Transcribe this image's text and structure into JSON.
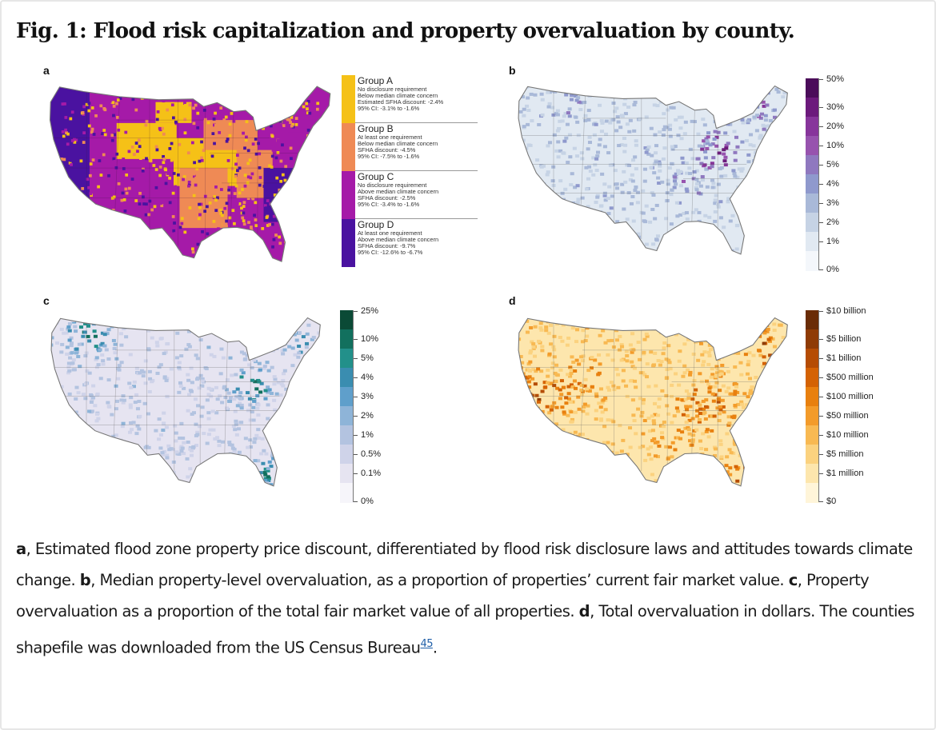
{
  "figure": {
    "title": "Fig. 1: Flood risk capitalization and property overvaluation by county."
  },
  "panels": [
    {
      "letter": "a",
      "legend": [
        {
          "name": "Group A",
          "color": "#f5c117",
          "lines": [
            "No disclosure requirement",
            "Below median climate concern",
            "Estimated SFHA discount: -2.4%",
            "95% CI: -3.1% to -1.6%"
          ]
        },
        {
          "name": "Group B",
          "color": "#ef8a55",
          "lines": [
            "At least one requirement",
            "Below median climate concern",
            "SFHA discount: -4.5%",
            "95% CI: -7.5% to -1.6%"
          ]
        },
        {
          "name": "Group C",
          "color": "#a51aa8",
          "lines": [
            "No disclosure requirement",
            "Above median climate concern",
            "SFHA discount: -2.5%",
            "95% CI: -3.4% to -1.6%"
          ]
        },
        {
          "name": "Group D",
          "color": "#4a12a0",
          "lines": [
            "At least one requirement",
            "Above median climate concern",
            "SFHA discount: -9.7%",
            "95% CI: -12.6% to -6.7%"
          ]
        }
      ]
    },
    {
      "letter": "b",
      "colorbar": {
        "labels": [
          "50%",
          "30%",
          "20%",
          "10%",
          "5%",
          "4%",
          "3%",
          "2%",
          "1%",
          "0%"
        ],
        "colors": [
          "#4b0d5a",
          "#6c1a7c",
          "#87359b",
          "#9753ae",
          "#8f78bf",
          "#8f99cd",
          "#a9b9d8",
          "#c6d3e5",
          "#e1e9f2",
          "#f4f7fb"
        ]
      }
    },
    {
      "letter": "c",
      "colorbar": {
        "labels": [
          "25%",
          "10%",
          "5%",
          "4%",
          "3%",
          "2%",
          "1%",
          "0.5%",
          "0.1%",
          "0%"
        ],
        "colors": [
          "#0b4a36",
          "#12705e",
          "#22908a",
          "#3a8db0",
          "#5f9fcb",
          "#8eb4d8",
          "#b3c3e0",
          "#cfd3e9",
          "#e6e4f1",
          "#f6f5fa"
        ]
      }
    },
    {
      "letter": "d",
      "colorbar": {
        "labels": [
          "$10 billion",
          "$5 billion",
          "$1 billion",
          "$500 million",
          "$100 million",
          "$50 million",
          "$10 million",
          "$5 million",
          "$1 million",
          "$0"
        ],
        "colors": [
          "#6a2c07",
          "#8f3b05",
          "#b54c04",
          "#d46204",
          "#e8800f",
          "#f39b2a",
          "#f8b952",
          "#fbd27f",
          "#fde6ad",
          "#fff5d9"
        ]
      }
    }
  ],
  "caption": {
    "a_label": "a",
    "a_text": ", Estimated flood zone property price discount, differentiated by flood risk disclosure laws and attitudes towards climate change. ",
    "b_label": "b",
    "b_text": ", Median property-level overvaluation, as a proportion of properties’ current fair market value. ",
    "c_label": "c",
    "c_text": ", Property overvaluation as a proportion of the total fair market value of all properties. ",
    "d_label": "d",
    "d_text": ", Total overvaluation in dollars. The counties shapefile was downloaded from the US Census Bureau",
    "ref": "45",
    "end": "."
  }
}
